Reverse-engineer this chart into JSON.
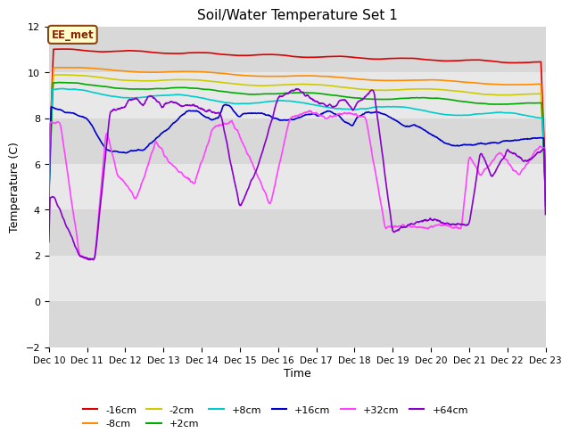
{
  "title": "Soil/Water Temperature Set 1",
  "xlabel": "Time",
  "ylabel": "Temperature (C)",
  "ylim": [
    -2,
    12
  ],
  "yticks": [
    -2,
    0,
    2,
    4,
    6,
    8,
    10,
    12
  ],
  "x_tick_labels": [
    "Dec 10",
    "Dec 11",
    "Dec 12",
    "Dec 13",
    "Dec 14",
    "Dec 15",
    "Dec 16",
    "Dec 17",
    "Dec 18",
    "Dec 19",
    "Dec 20",
    "Dec 21",
    "Dec 22",
    "Dec 23"
  ],
  "background_color": "#ffffff",
  "plot_bg_color": "#e8e8e8",
  "band_colors": [
    "#d8d8d8",
    "#e8e8e8"
  ],
  "annotation_text": "EE_met",
  "annotation_bg": "#ffffcc",
  "annotation_border": "#8b4513",
  "series": [
    {
      "label": "-16cm",
      "color": "#dd0000",
      "lw": 1.2
    },
    {
      "label": "-8cm",
      "color": "#ff8c00",
      "lw": 1.2
    },
    {
      "label": "-2cm",
      "color": "#cccc00",
      "lw": 1.2
    },
    {
      "label": "+2cm",
      "color": "#00aa00",
      "lw": 1.2
    },
    {
      "label": "+8cm",
      "color": "#00cccc",
      "lw": 1.2
    },
    {
      "label": "+16cm",
      "color": "#0000cc",
      "lw": 1.2
    },
    {
      "label": "+32cm",
      "color": "#ff44ff",
      "lw": 1.2
    },
    {
      "label": "+64cm",
      "color": "#8800cc",
      "lw": 1.2
    }
  ]
}
